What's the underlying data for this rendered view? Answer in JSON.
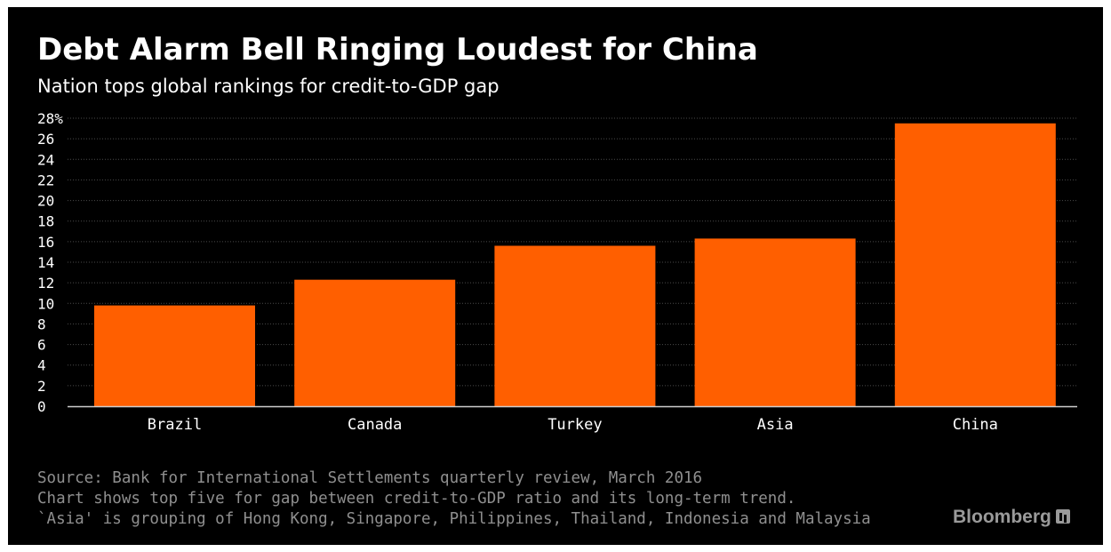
{
  "header": {
    "title": "Debt Alarm Bell Ringing Loudest for China",
    "subtitle": "Nation tops global rankings for credit-to-GDP gap"
  },
  "chart_data": {
    "type": "bar",
    "categories": [
      "Brazil",
      "Canada",
      "Turkey",
      "Asia",
      "China"
    ],
    "values": [
      9.8,
      12.3,
      15.6,
      16.3,
      27.5
    ],
    "ylim": [
      0,
      28
    ],
    "yticks": [
      0,
      2,
      4,
      6,
      8,
      10,
      12,
      14,
      16,
      18,
      20,
      22,
      24,
      26,
      28
    ],
    "ytick_labels": [
      "0",
      "2",
      "4",
      "6",
      "8",
      "10",
      "12",
      "14",
      "16",
      "18",
      "20",
      "22",
      "24",
      "26",
      "28%"
    ],
    "grid": true,
    "bar_color": "#ff5f00",
    "background_color": "#000000"
  },
  "footer": {
    "notes": [
      "Source: Bank for International Settlements quarterly review, March 2016",
      "Chart shows top five for gap between credit-to-GDP ratio and its long-term trend.",
      "`Asia' is grouping of Hong Kong, Singapore, Philippines, Thailand, Indonesia and Malaysia"
    ],
    "brand": "Bloomberg",
    "brand_icon": "bloomberg-chart-icon"
  }
}
